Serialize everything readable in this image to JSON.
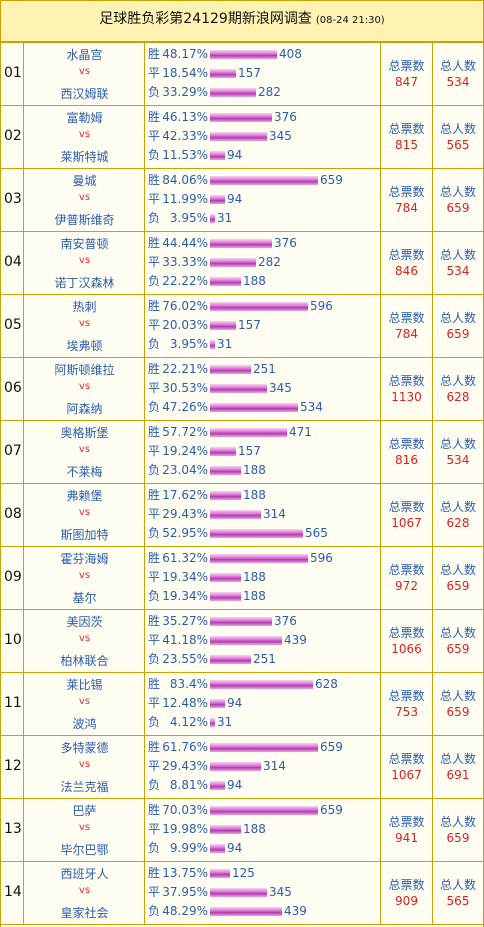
{
  "title": {
    "main": "足球胜负彩第24129期新浪网调查",
    "time": "(08-24 21:30)"
  },
  "labels": {
    "win": "胜",
    "draw": "平",
    "loss": "负",
    "vs": "vs",
    "total_votes": "总票数",
    "total_people": "总人数"
  },
  "matches": [
    {
      "no": "01",
      "home": "水晶宫",
      "away": "西汉姆联",
      "win_pct": "48.17%",
      "win": 408,
      "draw_pct": "18.54%",
      "draw": 157,
      "loss_pct": "33.29%",
      "loss": 282,
      "votes": "847",
      "people": "534"
    },
    {
      "no": "02",
      "home": "富勒姆",
      "away": "莱斯特城",
      "win_pct": "46.13%",
      "win": 376,
      "draw_pct": "42.33%",
      "draw": 345,
      "loss_pct": "11.53%",
      "loss": 94,
      "votes": "815",
      "people": "565"
    },
    {
      "no": "03",
      "home": "曼城",
      "away": "伊普斯维奇",
      "win_pct": "84.06%",
      "win": 659,
      "draw_pct": "11.99%",
      "draw": 94,
      "loss_pct": "3.95%",
      "loss": 31,
      "votes": "784",
      "people": "659"
    },
    {
      "no": "04",
      "home": "南安普顿",
      "away": "诺丁汉森林",
      "win_pct": "44.44%",
      "win": 376,
      "draw_pct": "33.33%",
      "draw": 282,
      "loss_pct": "22.22%",
      "loss": 188,
      "votes": "846",
      "people": "534"
    },
    {
      "no": "05",
      "home": "热刺",
      "away": "埃弗顿",
      "win_pct": "76.02%",
      "win": 596,
      "draw_pct": "20.03%",
      "draw": 157,
      "loss_pct": "3.95%",
      "loss": 31,
      "votes": "784",
      "people": "659"
    },
    {
      "no": "06",
      "home": "阿斯顿维拉",
      "away": "阿森纳",
      "win_pct": "22.21%",
      "win": 251,
      "draw_pct": "30.53%",
      "draw": 345,
      "loss_pct": "47.26%",
      "loss": 534,
      "votes": "1130",
      "people": "628"
    },
    {
      "no": "07",
      "home": "奥格斯堡",
      "away": "不莱梅",
      "win_pct": "57.72%",
      "win": 471,
      "draw_pct": "19.24%",
      "draw": 157,
      "loss_pct": "23.04%",
      "loss": 188,
      "votes": "816",
      "people": "534"
    },
    {
      "no": "08",
      "home": "弗赖堡",
      "away": "斯图加特",
      "win_pct": "17.62%",
      "win": 188,
      "draw_pct": "29.43%",
      "draw": 314,
      "loss_pct": "52.95%",
      "loss": 565,
      "votes": "1067",
      "people": "628"
    },
    {
      "no": "09",
      "home": "霍芬海姆",
      "away": "基尔",
      "win_pct": "61.32%",
      "win": 596,
      "draw_pct": "19.34%",
      "draw": 188,
      "loss_pct": "19.34%",
      "loss": 188,
      "votes": "972",
      "people": "659"
    },
    {
      "no": "10",
      "home": "美因茨",
      "away": "柏林联合",
      "win_pct": "35.27%",
      "win": 376,
      "draw_pct": "41.18%",
      "draw": 439,
      "loss_pct": "23.55%",
      "loss": 251,
      "votes": "1066",
      "people": "659"
    },
    {
      "no": "11",
      "home": "莱比锡",
      "away": "波鸿",
      "win_pct": "83.4%",
      "win": 628,
      "draw_pct": "12.48%",
      "draw": 94,
      "loss_pct": "4.12%",
      "loss": 31,
      "votes": "753",
      "people": "659"
    },
    {
      "no": "12",
      "home": "多特蒙德",
      "away": "法兰克福",
      "win_pct": "61.76%",
      "win": 659,
      "draw_pct": "29.43%",
      "draw": 314,
      "loss_pct": "8.81%",
      "loss": 94,
      "votes": "1067",
      "people": "691"
    },
    {
      "no": "13",
      "home": "巴萨",
      "away": "毕尔巴鄂",
      "win_pct": "70.03%",
      "win": 659,
      "draw_pct": "19.98%",
      "draw": 188,
      "loss_pct": "9.99%",
      "loss": 94,
      "votes": "941",
      "people": "659"
    },
    {
      "no": "14",
      "home": "西班牙人",
      "away": "皇家社会",
      "win_pct": "13.75%",
      "win": 125,
      "draw_pct": "37.95%",
      "draw": 345,
      "loss_pct": "48.29%",
      "loss": 439,
      "votes": "909",
      "people": "565"
    }
  ],
  "colors": {
    "border": "#c9a300",
    "header_bg": "#fff3b3",
    "team_text": "#2a5db0",
    "vs_text": "#dd3333",
    "value_text": "#dd2222",
    "bar": "#cc55c6"
  }
}
